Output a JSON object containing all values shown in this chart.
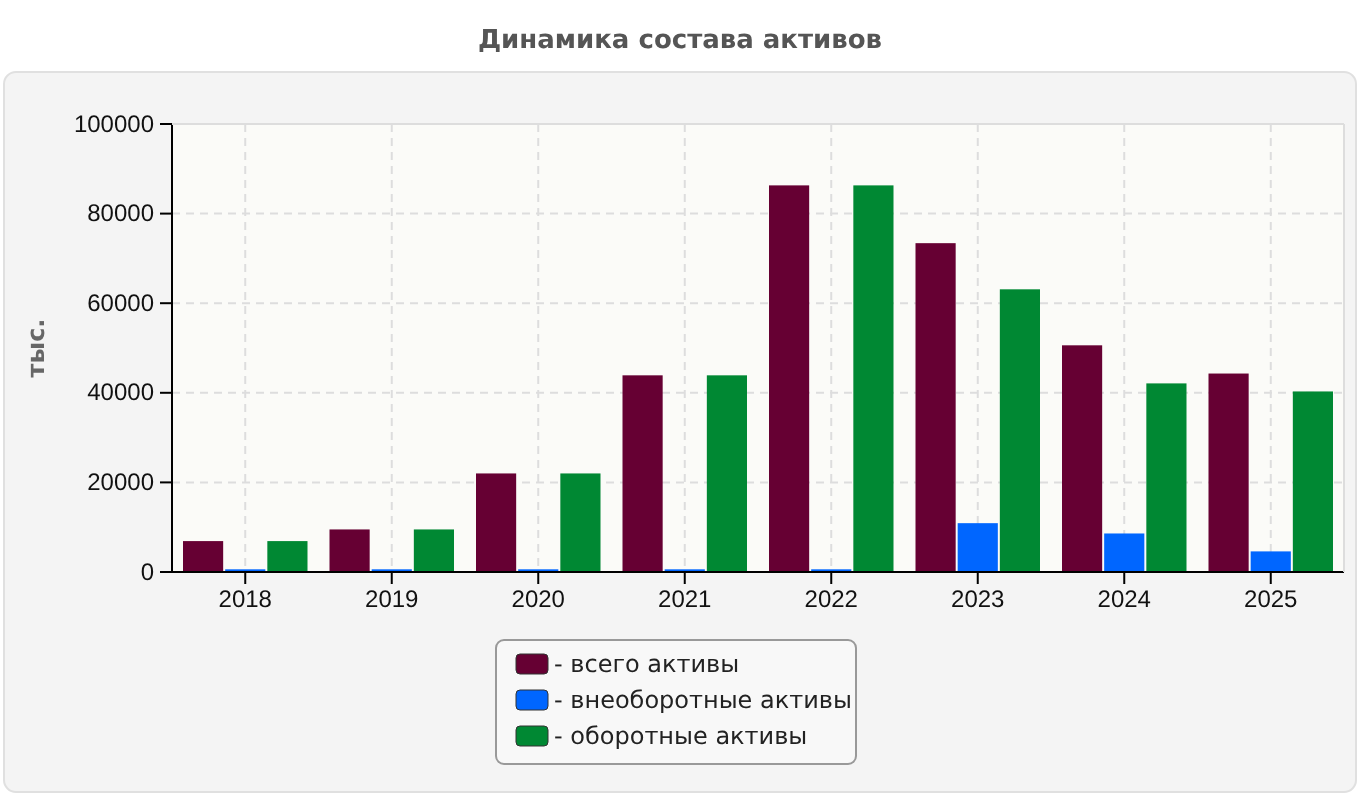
{
  "chart_data": {
    "type": "bar",
    "title": "Динамика состава активов",
    "ylabel": "тыс.",
    "categories": [
      "2018",
      "2019",
      "2020",
      "2021",
      "2022",
      "2023",
      "2024",
      "2025"
    ],
    "series": [
      {
        "name": "- всего активы",
        "color": "#660033",
        "values": [
          6900,
          9500,
          22000,
          43900,
          86300,
          73400,
          50600,
          44300
        ]
      },
      {
        "name": "- внеоборотные активы",
        "color": "#0066ff",
        "values": [
          600,
          600,
          600,
          600,
          600,
          10900,
          8600,
          4600
        ]
      },
      {
        "name": "- оборотные активы",
        "color": "#008833",
        "values": [
          6900,
          9500,
          22000,
          43900,
          86300,
          63100,
          42100,
          40300
        ]
      }
    ],
    "ylim": [
      0,
      100000
    ],
    "yticks": [
      0,
      20000,
      40000,
      60000,
      80000,
      100000
    ],
    "grid": true,
    "legend": "bottom"
  }
}
